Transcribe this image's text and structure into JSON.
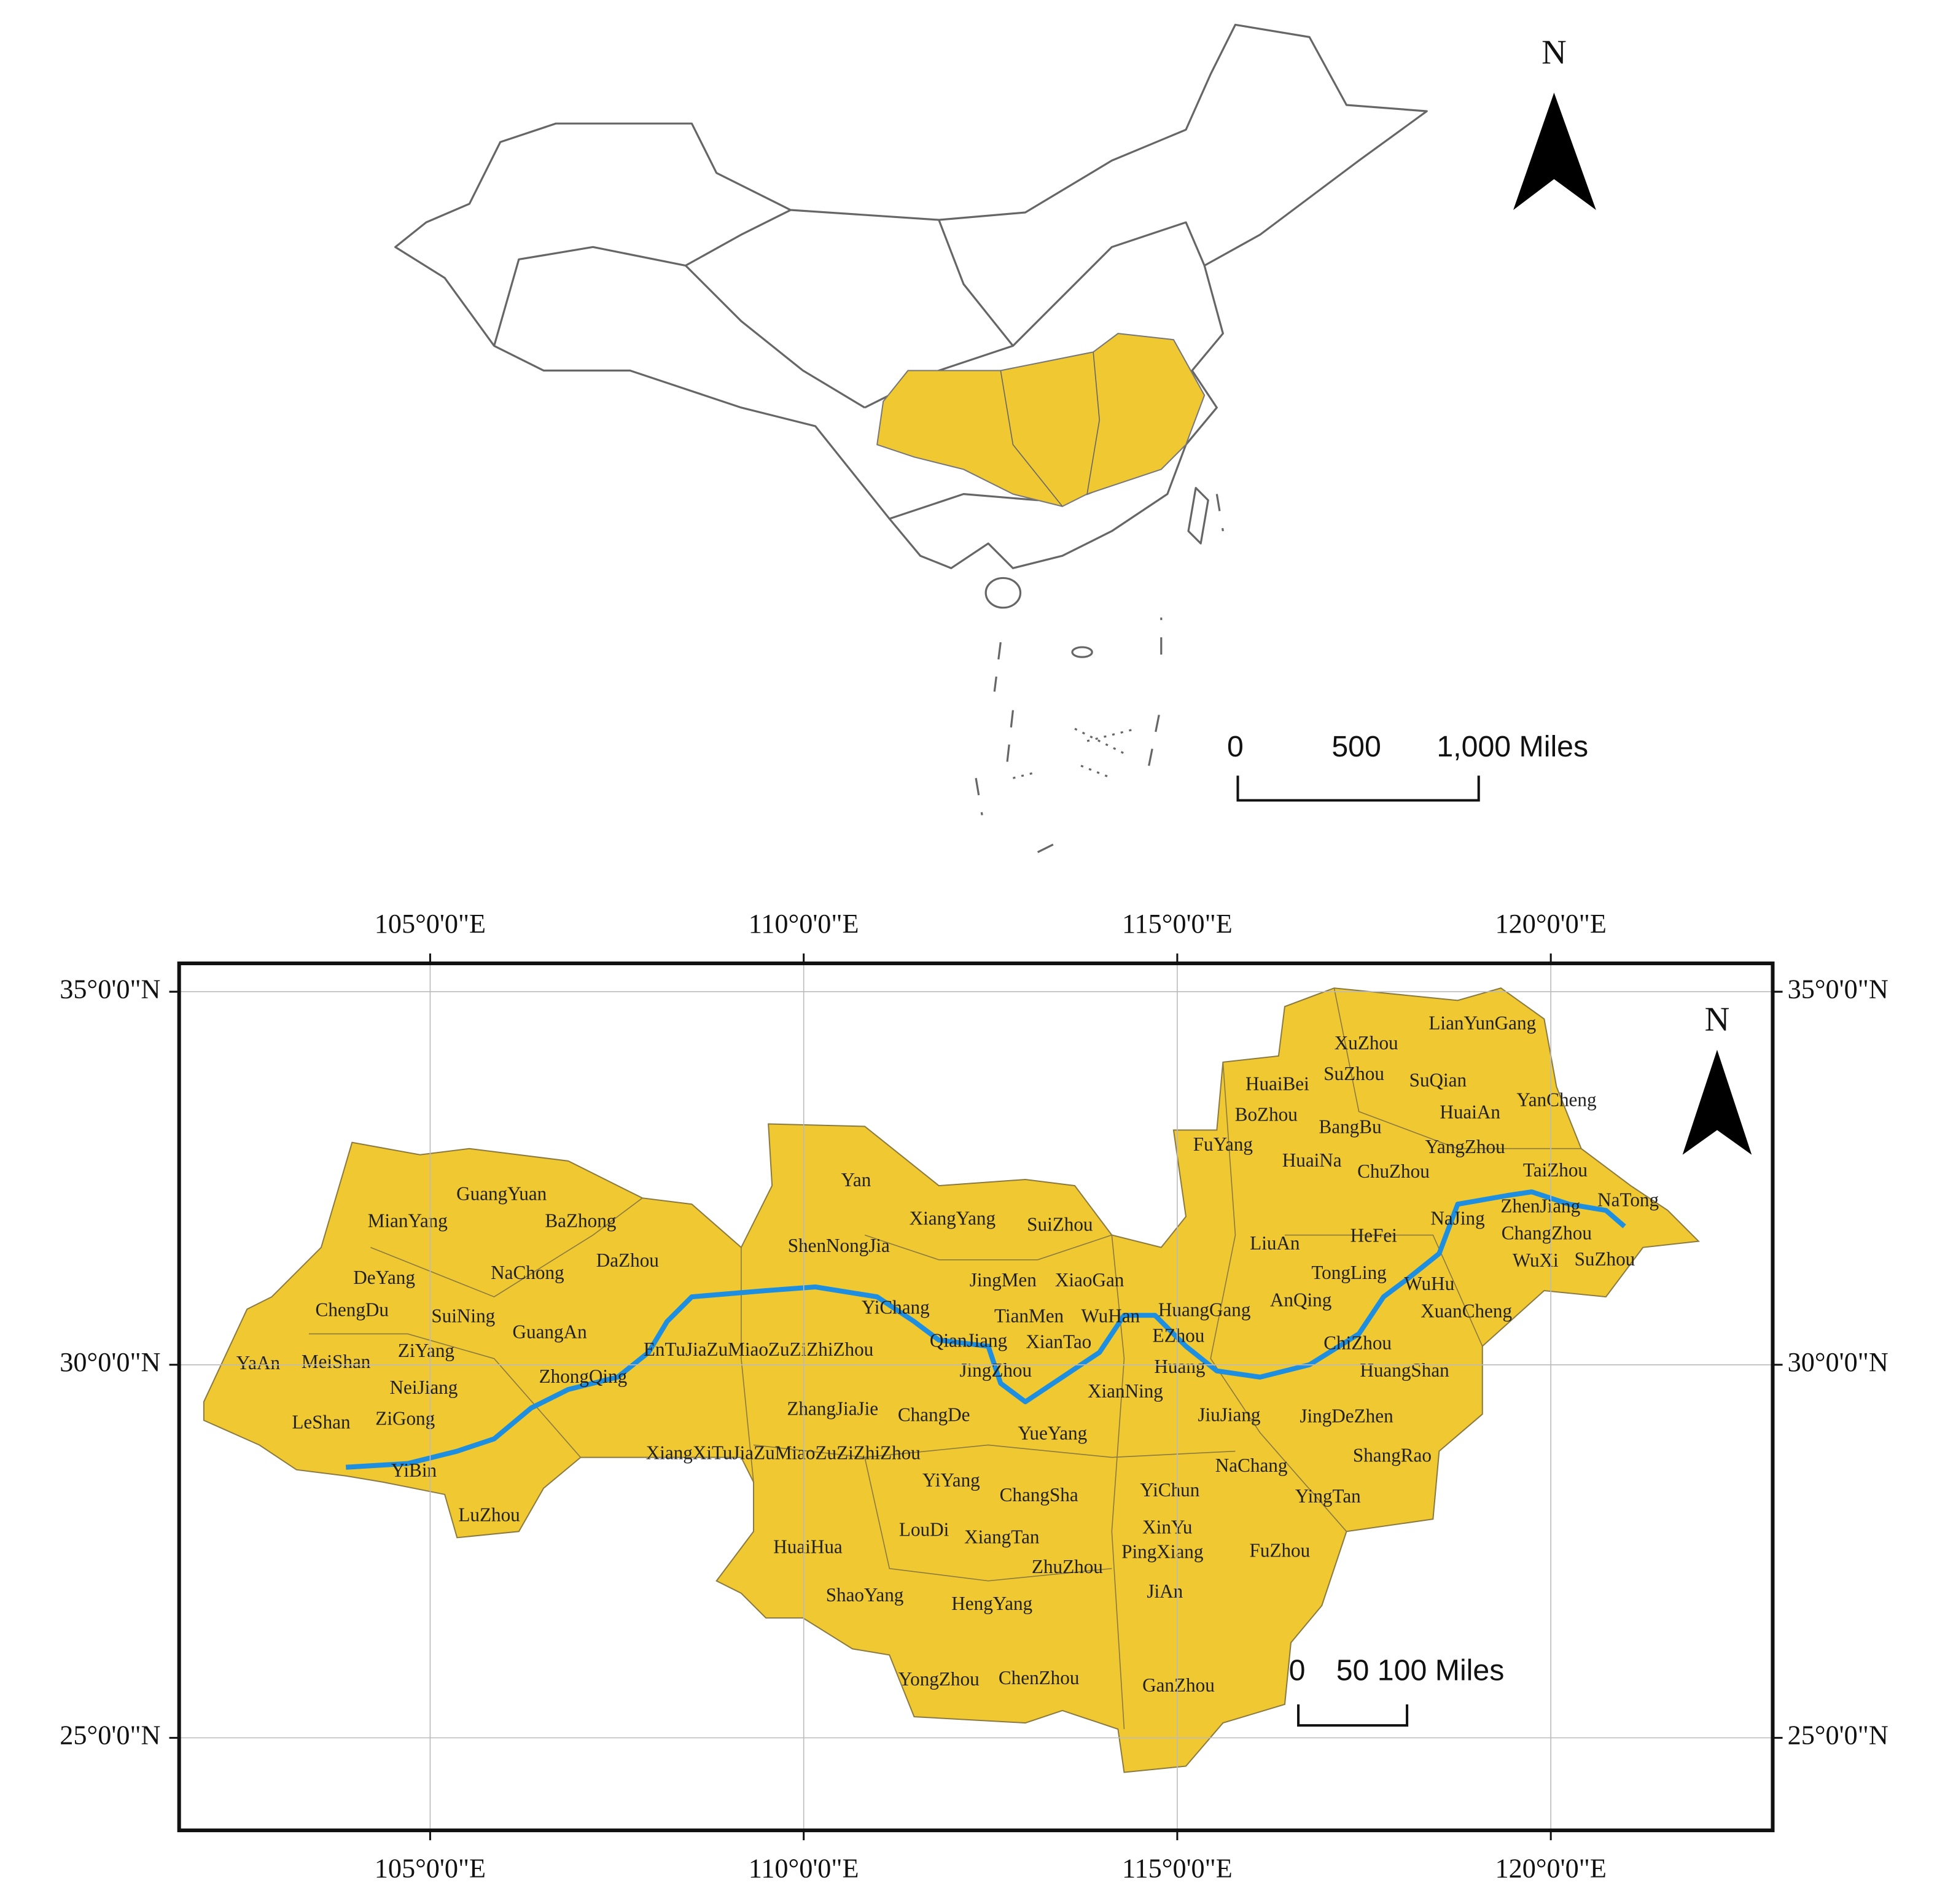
{
  "top_map": {
    "north_label": "N",
    "scale_bar": {
      "labels": [
        "0",
        "500",
        "1,000 Miles"
      ]
    }
  },
  "main_map": {
    "north_label": "N",
    "scale_bar": {
      "labels": [
        "0",
        "50",
        "100 Miles"
      ]
    },
    "xlim": [
      101.64,
      122.97
    ],
    "ylim": [
      23.76,
      35.38
    ],
    "xticks": [
      {
        "value": 105,
        "label": "105°0'0\"E"
      },
      {
        "value": 110,
        "label": "110°0'0\"E"
      },
      {
        "value": 115,
        "label": "115°0'0\"E"
      },
      {
        "value": 120,
        "label": "120°0'0\"E"
      }
    ],
    "yticks": [
      {
        "value": 25,
        "label": "25°0'0\"N"
      },
      {
        "value": 30,
        "label": "30°0'0\"N"
      },
      {
        "value": 35,
        "label": "35°0'0\"N"
      }
    ],
    "places": [
      "GuangYuan",
      "MianYang",
      "BaZhong",
      "DaZhou",
      "NaChong",
      "DeYang",
      "ChengDu",
      "SuiNing",
      "GuangAn",
      "YaAn",
      "MeiShan",
      "ZiYang",
      "ZhongQing",
      "NeiJiang",
      "LeShan",
      "ZiGong",
      "YiBin",
      "LuZhou",
      "Yan",
      "XiangYang",
      "SuiZhou",
      "ShenNongJia",
      "JingMen",
      "XiaoGan",
      "YiChang",
      "TianMen",
      "WuHan",
      "HuangGang",
      "EnTuJiaZuMiaoZuZiZhiZhou",
      "QianJiang",
      "XianTao",
      "EZhou",
      "JingZhou",
      "Huang",
      "XianNing",
      "ZhangJiaJie",
      "ChangDe",
      "JiuJiang",
      "JingDeZhen",
      "YueYang",
      "XiangXiTuJiaZuMiaoZuZiZhiZhou",
      "NaChang",
      "ShangRao",
      "YiYang",
      "ChangSha",
      "YiChun",
      "YingTan",
      "LouDi",
      "XiangTan",
      "XinYu",
      "HuaiHua",
      "PingXiang",
      "FuZhou",
      "ZhuZhou",
      "JiAn",
      "ShaoYang",
      "HengYang",
      "YongZhou",
      "ChenZhou",
      "GanZhou",
      "LianYunGang",
      "XuZhou",
      "HuaiBei",
      "SuZhou",
      "SuQian",
      "YanCheng",
      "BoZhou",
      "BangBu",
      "HuaiAn",
      "FuYang",
      "HuaiNa",
      "ChuZhou",
      "YangZhou",
      "TaiZhou",
      "ZhenJiang",
      "NaTong",
      "NaJing",
      "LiuAn",
      "HeFei",
      "ChangZhou",
      "TongLing",
      "WuXi",
      "SuZhou",
      "WuHu",
      "AnQing",
      "XuanCheng",
      "ChiZhou",
      "HuangShan"
    ]
  }
}
